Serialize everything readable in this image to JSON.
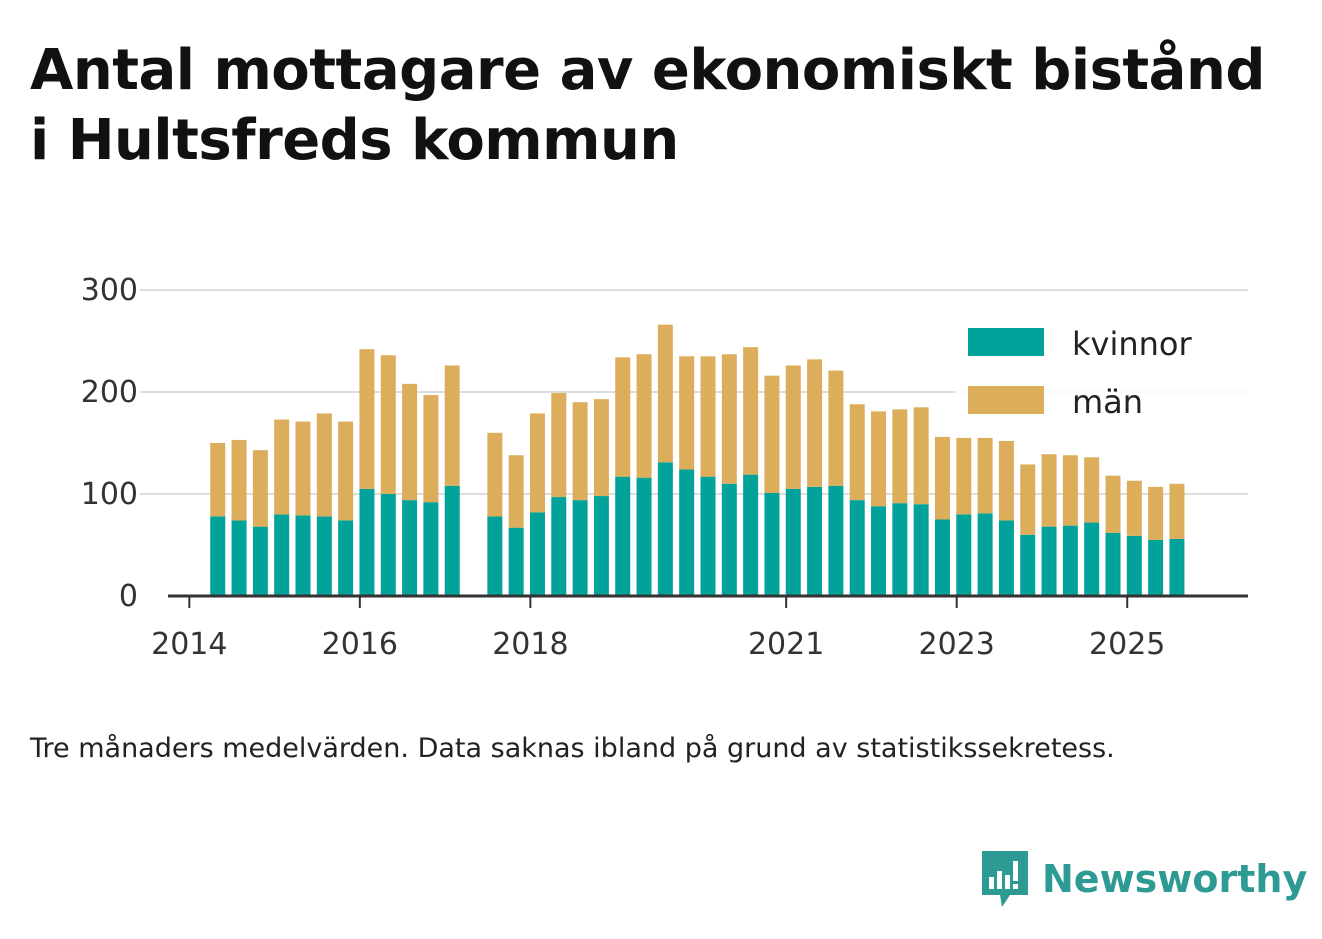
{
  "title": "Antal mottagare av ekonomiskt bistånd i Hultsfreds kommun",
  "footnote": "Tre månaders medelvärden. Data saknas ibland på grund av statistikssekretess.",
  "brand": {
    "name": "Newsworthy",
    "icon": "newsworthy-logo-icon",
    "color": "#2e9a94"
  },
  "chart_data": {
    "type": "bar",
    "stacked": true,
    "ylim": [
      0,
      300
    ],
    "yticks": [
      0,
      100,
      200,
      300
    ],
    "xlim": [
      "2013-10",
      "2026-06"
    ],
    "xticks": [
      "2014",
      "2016",
      "2018",
      "2021",
      "2023",
      "2025"
    ],
    "grid": true,
    "legend_position": "top-right",
    "x": [
      "2014-05",
      "2014-08",
      "2014-11",
      "2015-02",
      "2015-05",
      "2015-08",
      "2015-11",
      "2016-02",
      "2016-05",
      "2016-08",
      "2016-11",
      "2017-02",
      "2017-08",
      "2017-11",
      "2018-02",
      "2018-05",
      "2018-08",
      "2018-11",
      "2019-02",
      "2019-05",
      "2019-08",
      "2019-11",
      "2020-02",
      "2020-05",
      "2020-08",
      "2020-11",
      "2021-02",
      "2021-05",
      "2021-08",
      "2021-11",
      "2022-02",
      "2022-05",
      "2022-08",
      "2022-11",
      "2023-02",
      "2023-05",
      "2023-08",
      "2023-11",
      "2024-02",
      "2024-05",
      "2024-08",
      "2024-11",
      "2025-02",
      "2025-05",
      "2025-08"
    ],
    "series": [
      {
        "name": "kvinnor",
        "color": "#00a29a",
        "values": [
          78,
          74,
          68,
          80,
          79,
          78,
          74,
          105,
          100,
          94,
          92,
          108,
          78,
          67,
          82,
          97,
          94,
          98,
          117,
          116,
          131,
          124,
          117,
          110,
          119,
          101,
          105,
          107,
          108,
          94,
          88,
          91,
          90,
          75,
          80,
          81,
          74,
          60,
          68,
          69,
          72,
          62,
          59,
          55,
          56
        ]
      },
      {
        "name": "män",
        "color": "#dcae5b",
        "values": [
          72,
          79,
          75,
          93,
          92,
          101,
          97,
          137,
          136,
          114,
          105,
          118,
          82,
          71,
          97,
          102,
          96,
          95,
          117,
          121,
          135,
          111,
          118,
          127,
          125,
          115,
          121,
          125,
          113,
          94,
          93,
          92,
          95,
          81,
          75,
          74,
          78,
          69,
          71,
          69,
          64,
          56,
          54,
          52,
          54
        ]
      }
    ]
  }
}
